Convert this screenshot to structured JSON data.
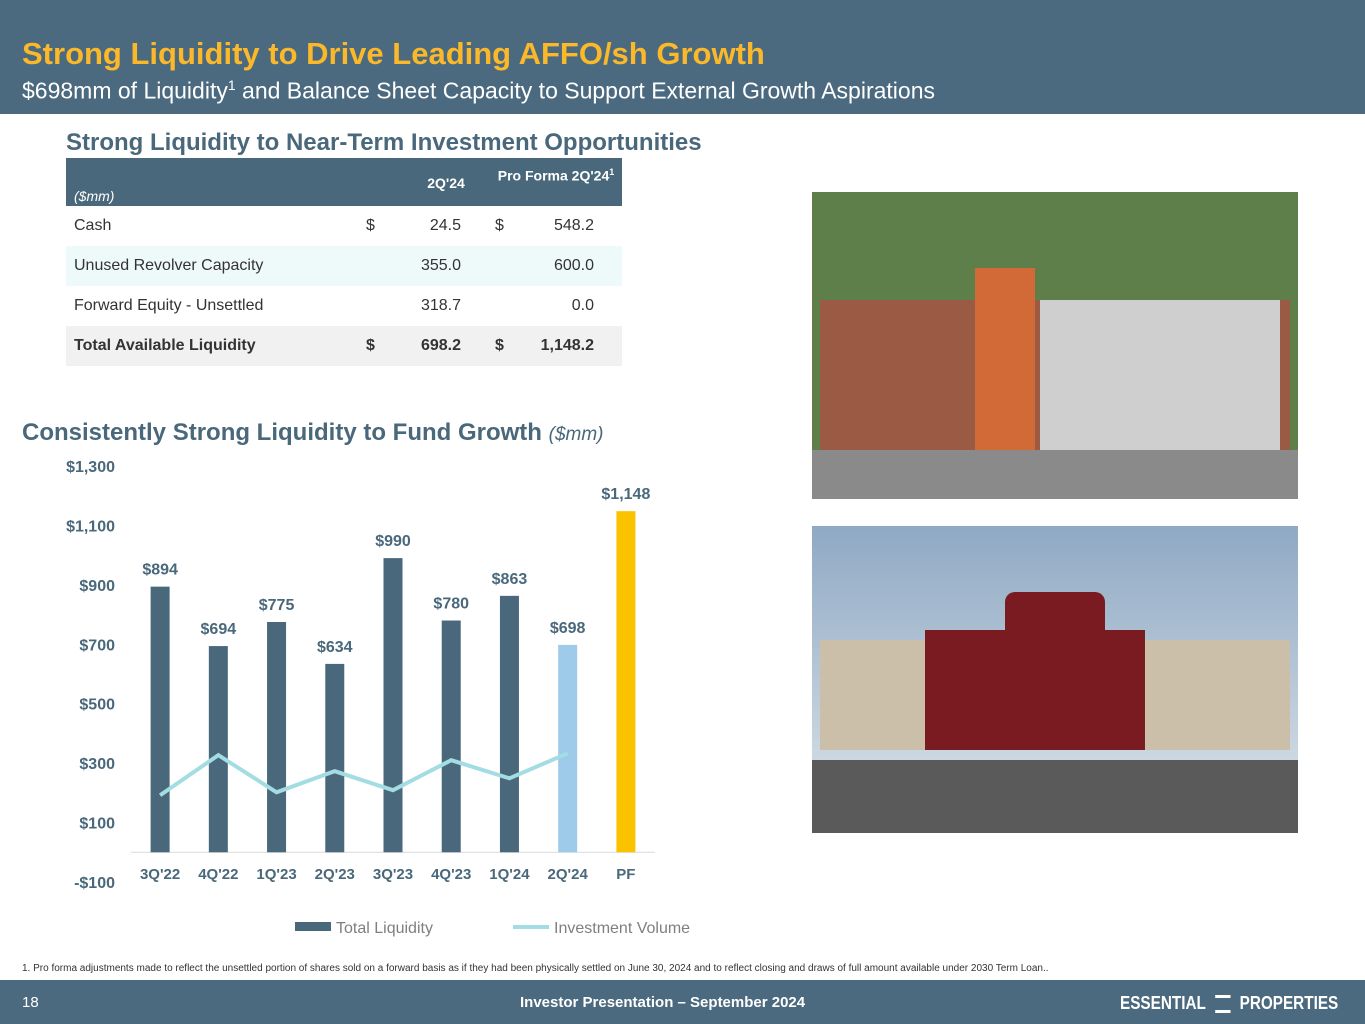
{
  "header": {
    "title": "Strong Liquidity to Drive Leading AFFO/sh Growth",
    "subtitle_pre": "$698mm of Liquidity",
    "subtitle_sup": "1",
    "subtitle_post": " and Balance Sheet Capacity to Support External Growth Aspirations"
  },
  "table": {
    "title": "Strong Liquidity to Near-Term Investment Opportunities",
    "unit": "($mm)",
    "col1": "2Q'24",
    "col2": "Pro Forma 2Q'24",
    "col2_sup": "1",
    "rows": [
      {
        "label": "Cash",
        "sign1": "$",
        "v1": "24.5",
        "sign2": "$",
        "v2": "548.2"
      },
      {
        "label": "Unused Revolver Capacity",
        "v1": "355.0",
        "v2": "600.0"
      },
      {
        "label": "Forward Equity - Unsettled",
        "v1": "318.7",
        "v2": "0.0"
      },
      {
        "label": "Total Available Liquidity",
        "sign1": "$",
        "v1": "698.2",
        "sign2": "$",
        "v2": "1,148.2"
      }
    ]
  },
  "chart_data": {
    "type": "bar",
    "title": "Consistently Strong Liquidity to Fund Growth",
    "unit": "($mm)",
    "categories": [
      "3Q'22",
      "4Q'22",
      "1Q'23",
      "2Q'23",
      "3Q'23",
      "4Q'23",
      "1Q'24",
      "2Q'24",
      "PF"
    ],
    "series": [
      {
        "name": "Total Liquidity",
        "color": "#4a687b",
        "type": "bar",
        "values": [
          894,
          694,
          775,
          634,
          990,
          780,
          863,
          698,
          1148
        ],
        "value_labels": [
          "$894",
          "$694",
          "$775",
          "$634",
          "$990",
          "$780",
          "$863",
          "$698",
          "$1,148"
        ],
        "colors": [
          "#4a687b",
          "#4a687b",
          "#4a687b",
          "#4a687b",
          "#4a687b",
          "#4a687b",
          "#4a687b",
          "#9ecbea",
          "#fbc200"
        ]
      },
      {
        "name": "Investment Volume",
        "color": "#a3dde3",
        "type": "line",
        "values": [
          192,
          327,
          202,
          273,
          209,
          310,
          249,
          333,
          null
        ]
      }
    ],
    "ylim": [
      -100,
      1300
    ],
    "yticks": [
      {
        "value": -100,
        "label": "-$100"
      },
      {
        "value": 100,
        "label": "$100"
      },
      {
        "value": 300,
        "label": "$300"
      },
      {
        "value": 500,
        "label": "$500"
      },
      {
        "value": 700,
        "label": "$700"
      },
      {
        "value": 900,
        "label": "$900"
      },
      {
        "value": 1100,
        "label": "$1,100"
      },
      {
        "value": 1300,
        "label": "$1,300"
      }
    ],
    "grid": false,
    "legend": "bottom"
  },
  "footnote": "1.  Pro forma adjustments made to reflect the unsettled portion of shares sold on a forward basis as if they had been physically settled on June 30, 2024 and to reflect closing and draws of full amount available under 2030 Term Loan..",
  "footer": {
    "page": "18",
    "center": "Investor Presentation – September 2024",
    "logo_left": "ESSENTIAL",
    "logo_right": "PROPERTIES"
  }
}
